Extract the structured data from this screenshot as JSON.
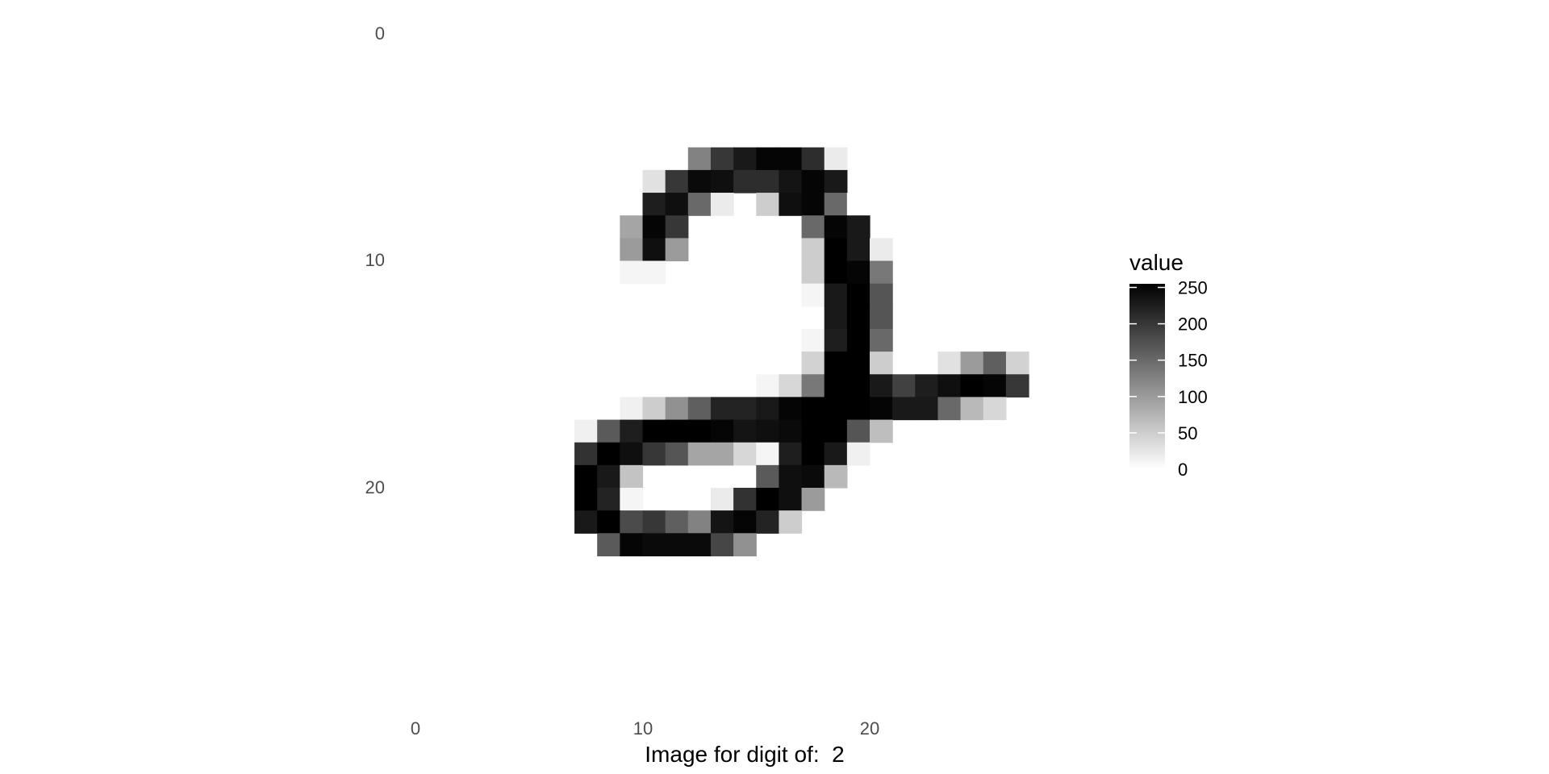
{
  "chart_data": {
    "type": "heatmap",
    "title": "",
    "xlabel": "Image for digit of:  2",
    "ylabel": "",
    "x_ticks": [
      "0",
      "10",
      "20"
    ],
    "y_ticks": [
      "0",
      "10",
      "20"
    ],
    "xlim": [
      0,
      28
    ],
    "ylim": [
      0,
      28
    ],
    "y_reversed": true,
    "grid": false,
    "legend": {
      "title": "value",
      "placement": "right",
      "breaks": [
        "250",
        "200",
        "150",
        "100",
        "50",
        "0"
      ],
      "range": [
        0,
        255
      ],
      "colors": [
        "#ffffff",
        "#000000"
      ]
    },
    "pixels": [
      {
        "row": 5,
        "cols": [
          12,
          13,
          14,
          15,
          16,
          17,
          18
        ],
        "values": [
          125,
          200,
          230,
          250,
          250,
          210,
          20
        ]
      },
      {
        "row": 6,
        "cols": [
          10,
          11,
          12,
          13,
          14,
          15,
          16,
          17,
          18
        ],
        "values": [
          30,
          200,
          245,
          240,
          210,
          210,
          235,
          250,
          230
        ]
      },
      {
        "row": 7,
        "cols": [
          10,
          11,
          12,
          13,
          15,
          16,
          17,
          18,
          19
        ],
        "values": [
          225,
          240,
          150,
          20,
          50,
          240,
          250,
          150,
          0
        ]
      },
      {
        "row": 8,
        "cols": [
          9,
          10,
          11,
          17,
          18,
          19
        ],
        "values": [
          90,
          250,
          200,
          150,
          250,
          230
        ]
      },
      {
        "row": 9,
        "cols": [
          9,
          10,
          11,
          17,
          18,
          19,
          20
        ],
        "values": [
          100,
          240,
          100,
          50,
          255,
          230,
          20
        ]
      },
      {
        "row": 10,
        "cols": [
          9,
          10,
          17,
          18,
          19,
          20
        ],
        "values": [
          10,
          10,
          50,
          255,
          250,
          135
        ]
      },
      {
        "row": 11,
        "cols": [
          17,
          18,
          19,
          20
        ],
        "values": [
          10,
          230,
          255,
          170
        ]
      },
      {
        "row": 12,
        "cols": [
          18,
          19,
          20
        ],
        "values": [
          230,
          255,
          170
        ]
      },
      {
        "row": 13,
        "cols": [
          17,
          18,
          19,
          20
        ],
        "values": [
          10,
          225,
          255,
          150
        ]
      },
      {
        "row": 14,
        "cols": [
          17,
          18,
          19,
          20,
          23,
          24,
          25,
          26
        ],
        "values": [
          45,
          255,
          255,
          50,
          30,
          100,
          160,
          45
        ]
      },
      {
        "row": 15,
        "cols": [
          15,
          16,
          17,
          18,
          19,
          20,
          21,
          22,
          23,
          24,
          25,
          26
        ],
        "values": [
          10,
          40,
          135,
          255,
          255,
          230,
          190,
          225,
          240,
          255,
          250,
          200
        ]
      },
      {
        "row": 16,
        "cols": [
          9,
          10,
          11,
          12,
          13,
          14,
          15,
          16,
          17,
          18,
          19,
          20,
          21,
          22,
          23,
          24,
          25
        ],
        "values": [
          15,
          50,
          110,
          160,
          220,
          220,
          230,
          250,
          255,
          255,
          255,
          250,
          230,
          230,
          150,
          70,
          40
        ]
      },
      {
        "row": 17,
        "cols": [
          7,
          8,
          9,
          10,
          11,
          12,
          13,
          14,
          15,
          16,
          17,
          18,
          19,
          20
        ],
        "values": [
          15,
          165,
          225,
          255,
          255,
          255,
          250,
          235,
          240,
          245,
          255,
          255,
          170,
          65
        ]
      },
      {
        "row": 18,
        "cols": [
          7,
          8,
          9,
          10,
          11,
          12,
          13,
          14,
          15,
          16,
          17,
          18,
          19
        ],
        "values": [
          205,
          255,
          240,
          200,
          170,
          90,
          90,
          40,
          10,
          225,
          255,
          230,
          15
        ]
      },
      {
        "row": 19,
        "cols": [
          7,
          8,
          9,
          15,
          16,
          17,
          18
        ],
        "values": [
          255,
          230,
          60,
          165,
          240,
          245,
          70
        ]
      },
      {
        "row": 20,
        "cols": [
          7,
          8,
          9,
          13,
          14,
          15,
          16,
          17
        ],
        "values": [
          255,
          220,
          10,
          20,
          205,
          255,
          240,
          100
        ]
      },
      {
        "row": 21,
        "cols": [
          7,
          8,
          9,
          10,
          11,
          12,
          13,
          14,
          15,
          16
        ],
        "values": [
          230,
          255,
          180,
          200,
          160,
          125,
          235,
          250,
          220,
          50
        ]
      },
      {
        "row": 22,
        "cols": [
          8,
          9,
          10,
          11,
          12,
          13,
          14
        ],
        "values": [
          165,
          250,
          245,
          245,
          245,
          185,
          110
        ]
      }
    ]
  }
}
